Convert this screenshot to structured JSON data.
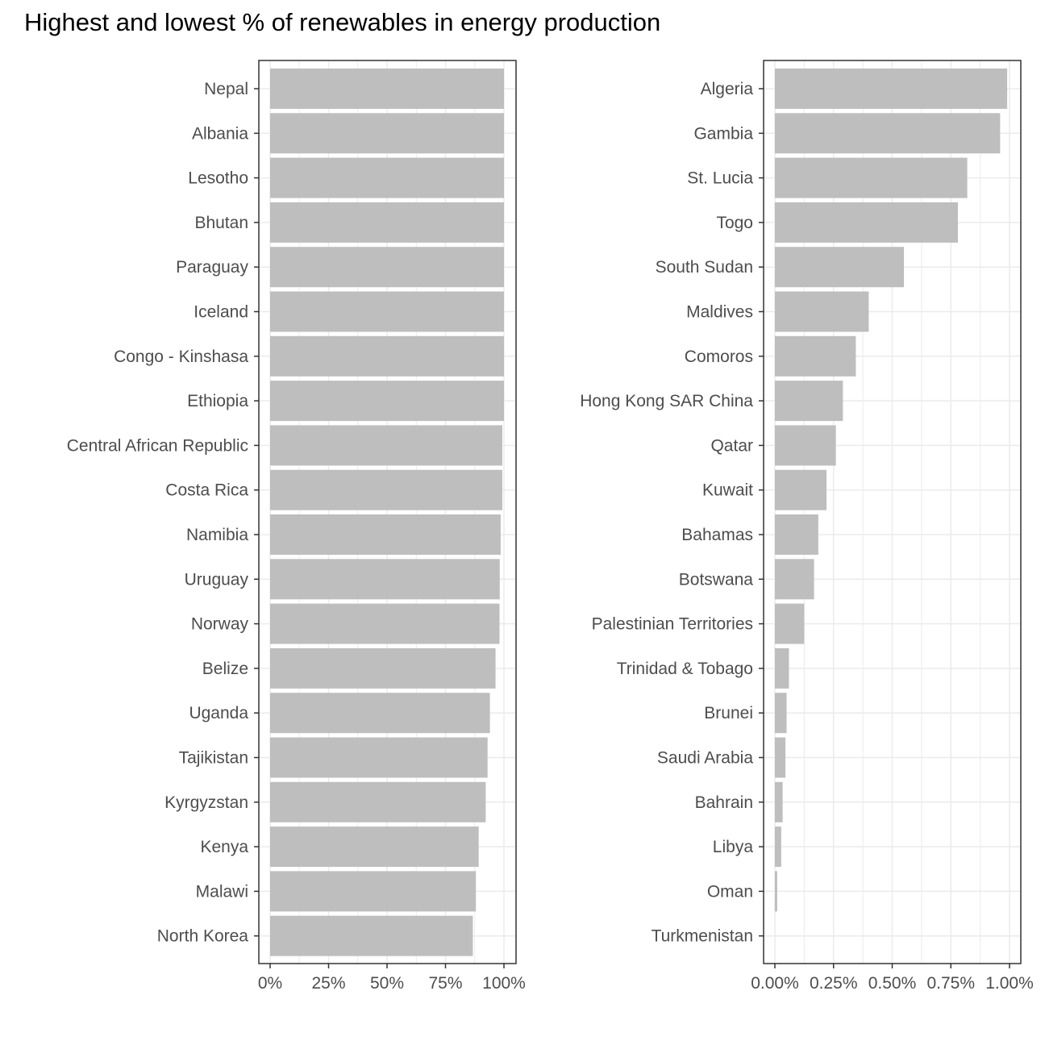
{
  "title": "Highest and lowest % of renewables in energy production",
  "colors": {
    "bar": "#bebebe",
    "grid": "#ebebeb",
    "axis": "#333333",
    "text": "#4d4d4d"
  },
  "chart_data": [
    {
      "type": "bar",
      "orientation": "horizontal",
      "panel": "left",
      "value_unit": "fraction",
      "categories": [
        "Nepal",
        "Albania",
        "Lesotho",
        "Bhutan",
        "Paraguay",
        "Iceland",
        "Congo - Kinshasa",
        "Ethiopia",
        "Central African Republic",
        "Costa Rica",
        "Namibia",
        "Uruguay",
        "Norway",
        "Belize",
        "Uganda",
        "Tajikistan",
        "Kyrgyzstan",
        "Kenya",
        "Malawi",
        "North Korea"
      ],
      "values": [
        1.0,
        1.0,
        1.0,
        1.0,
        1.0,
        1.0,
        1.0,
        1.0,
        0.993,
        0.993,
        0.986,
        0.982,
        0.981,
        0.964,
        0.94,
        0.93,
        0.922,
        0.892,
        0.88,
        0.867
      ],
      "xlim": [
        0,
        1
      ],
      "ticks": [
        0,
        0.25,
        0.5,
        0.75,
        1.0
      ],
      "tick_labels": [
        "0%",
        "25%",
        "50%",
        "75%",
        "100%"
      ],
      "grid": true
    },
    {
      "type": "bar",
      "orientation": "horizontal",
      "panel": "right",
      "value_unit": "percent",
      "categories": [
        "Algeria",
        "Gambia",
        "St. Lucia",
        "Togo",
        "South Sudan",
        "Maldives",
        "Comoros",
        "Hong Kong SAR China",
        "Qatar",
        "Kuwait",
        "Bahamas",
        "Botswana",
        "Palestinian Territories",
        "Trinidad & Tobago",
        "Brunei",
        "Saudi Arabia",
        "Bahrain",
        "Libya",
        "Oman",
        "Turkmenistan"
      ],
      "values": [
        0.99,
        0.96,
        0.82,
        0.78,
        0.55,
        0.4,
        0.345,
        0.29,
        0.26,
        0.22,
        0.185,
        0.167,
        0.125,
        0.06,
        0.05,
        0.045,
        0.033,
        0.027,
        0.01,
        0.0
      ],
      "xlim": [
        0,
        1.0
      ],
      "ticks": [
        0,
        0.25,
        0.5,
        0.75,
        1.0
      ],
      "tick_labels": [
        "0.00%",
        "0.25%",
        "0.50%",
        "0.75%",
        "1.00%"
      ],
      "grid": true
    }
  ]
}
